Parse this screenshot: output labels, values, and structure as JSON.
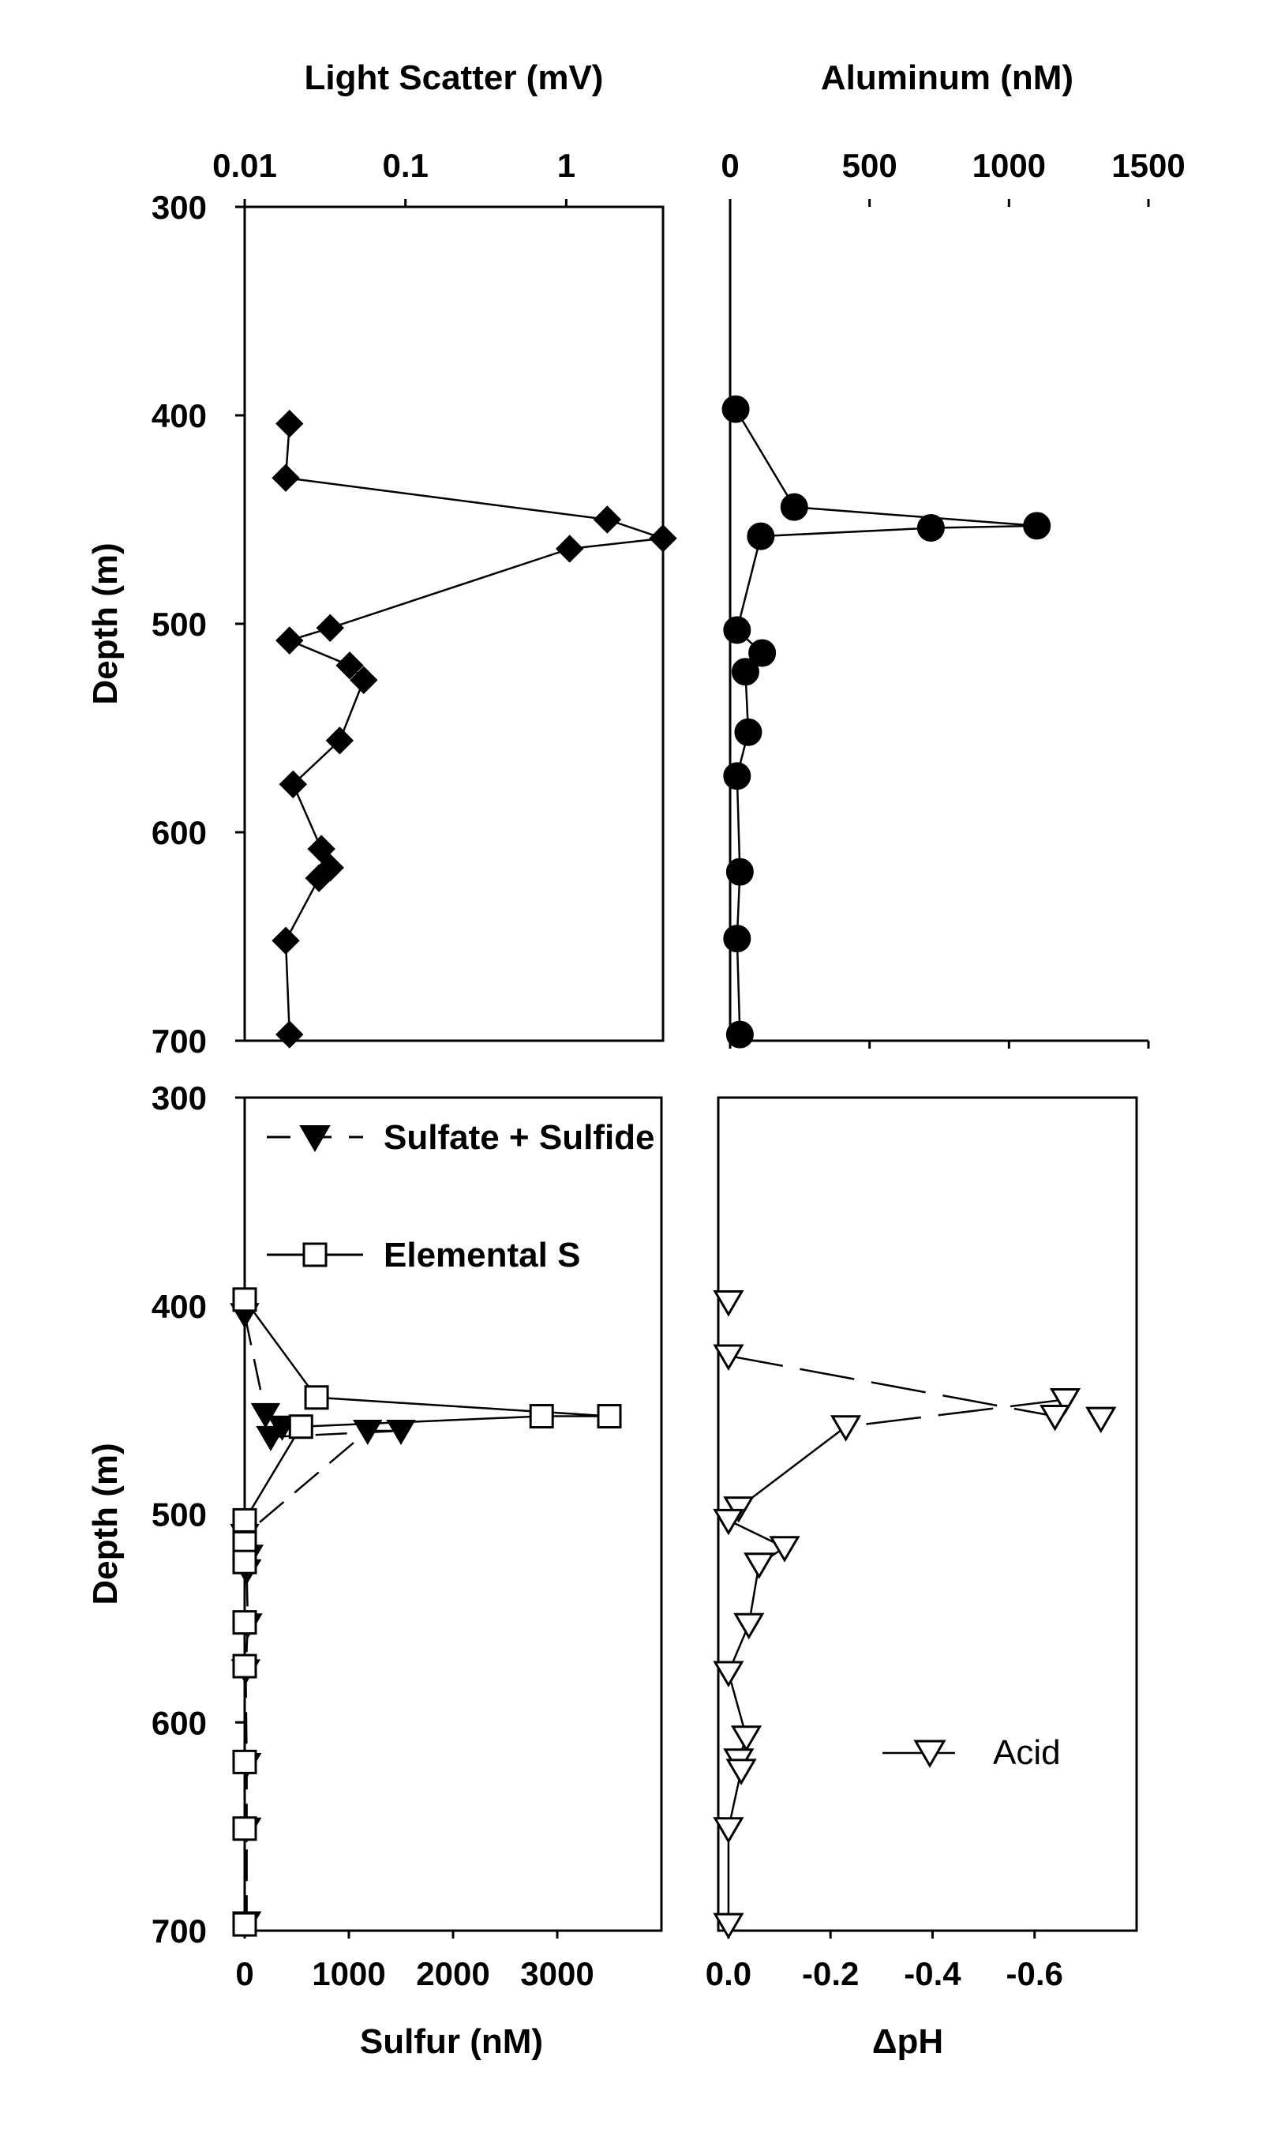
{
  "chart_data": [
    {
      "type": "line",
      "id": "light-scatter",
      "xlabel": "Light Scatter (mV)",
      "ylabel": "Depth (m)",
      "x_scale": "log",
      "xlim": [
        0.01,
        4.0
      ],
      "ylim": [
        300,
        700
      ],
      "x_ticks": [
        0.01,
        0.1,
        1
      ],
      "x_tick_labels": [
        "0.01",
        "0.1",
        "1"
      ],
      "y_ticks": [
        300,
        400,
        500,
        600,
        700
      ],
      "y_tick_labels": [
        "300",
        "400",
        "500",
        "600",
        "700"
      ],
      "series": [
        {
          "marker": "diamond-filled",
          "line": "solid",
          "points": [
            [
              0.019,
              404
            ],
            [
              0.018,
              430
            ],
            [
              1.8,
              450
            ],
            [
              4.0,
              459
            ],
            [
              1.05,
              464
            ],
            [
              0.034,
              502
            ],
            [
              0.019,
              508
            ],
            [
              0.045,
              520
            ],
            [
              0.055,
              527
            ],
            [
              0.039,
              556
            ],
            [
              0.02,
              577
            ],
            [
              0.03,
              608
            ],
            [
              0.034,
              617
            ],
            [
              0.029,
              622
            ],
            [
              0.018,
              652
            ],
            [
              0.019,
              697
            ]
          ]
        }
      ]
    },
    {
      "type": "line",
      "id": "aluminum",
      "xlabel": "Aluminum (nM)",
      "xlim": [
        0,
        1500
      ],
      "ylim": [
        300,
        700
      ],
      "x_ticks": [
        0,
        500,
        1000,
        1500
      ],
      "x_tick_labels": [
        "0",
        "500",
        "1000",
        "1500"
      ],
      "series": [
        {
          "marker": "circle-filled",
          "line": "solid",
          "points": [
            [
              20,
              397
            ],
            [
              230,
              444
            ],
            [
              1100,
              453
            ],
            [
              720,
              454
            ],
            [
              110,
              458
            ],
            [
              25,
              503
            ],
            [
              115,
              514
            ],
            [
              55,
              523
            ],
            [
              65,
              552
            ],
            [
              25,
              573
            ],
            [
              35,
              619
            ],
            [
              25,
              651
            ],
            [
              35,
              697
            ]
          ]
        }
      ]
    },
    {
      "type": "line",
      "id": "sulfur",
      "xlabel": "Sulfur (nM)",
      "ylabel": "Depth (m)",
      "xlim": [
        0,
        4000
      ],
      "ylim": [
        300,
        700
      ],
      "x_ticks": [
        0,
        1000,
        2000,
        3000
      ],
      "x_tick_labels": [
        "0",
        "1000",
        "2000",
        "3000"
      ],
      "y_ticks": [
        300,
        400,
        500,
        600,
        700
      ],
      "y_tick_labels": [
        "300",
        "400",
        "500",
        "600",
        "700"
      ],
      "legend_position": "top-left",
      "series": [
        {
          "name": "Sulfate + Sulfide",
          "marker": "triangle-down-filled",
          "line": "dash",
          "points": [
            [
              0,
              404
            ],
            [
              200,
              452
            ],
            [
              360,
              458
            ],
            [
              250,
              463
            ],
            [
              1500,
              460
            ],
            [
              1180,
              460
            ],
            [
              0,
              510
            ],
            [
              40,
              520
            ],
            [
              20,
              527
            ],
            [
              30,
              553
            ],
            [
              10,
              575
            ],
            [
              20,
              620
            ],
            [
              20,
              651
            ],
            [
              20,
              696
            ]
          ]
        },
        {
          "name": "Elemental S",
          "marker": "square-open",
          "line": "solid",
          "points": [
            [
              0,
              397
            ],
            [
              690,
              444
            ],
            [
              3500,
              453
            ],
            [
              2850,
              453
            ],
            [
              540,
              458
            ],
            [
              0,
              503
            ],
            [
              0,
              514
            ],
            [
              0,
              523
            ],
            [
              0,
              552
            ],
            [
              0,
              573
            ],
            [
              0,
              619
            ],
            [
              0,
              651
            ],
            [
              0,
              697
            ]
          ]
        }
      ]
    },
    {
      "type": "line",
      "id": "delta-ph",
      "xlabel": "ΔpH",
      "xlim": [
        0.02,
        -0.8
      ],
      "ylim": [
        300,
        700
      ],
      "x_ticks": [
        0.0,
        -0.2,
        -0.4,
        -0.6
      ],
      "x_tick_labels": [
        "0.0",
        "-0.2",
        "-0.4",
        "-0.6"
      ],
      "legend_position": "lower-right",
      "series": [
        {
          "name": "Acid",
          "marker": "triangle-down-open",
          "points": [
            [
              0.0,
              398
            ],
            [
              0.0,
              424
            ],
            [
              -0.66,
              445
            ],
            [
              -0.64,
              453
            ],
            [
              -0.73,
              454
            ],
            [
              -0.23,
              458
            ],
            [
              -0.02,
              497
            ],
            [
              0.0,
              503
            ],
            [
              -0.11,
              516
            ],
            [
              -0.06,
              524
            ],
            [
              -0.04,
              553
            ],
            [
              0.0,
              576
            ],
            [
              -0.035,
              607
            ],
            [
              -0.02,
              618
            ],
            [
              -0.025,
              623
            ],
            [
              0.0,
              651
            ],
            [
              0.0,
              697
            ]
          ],
          "segments": [
            {
              "from": 1,
              "to": 3,
              "style": "long-dash"
            },
            {
              "from": 2,
              "to": 5,
              "style": "long-dash"
            },
            {
              "from": 5,
              "to": 6,
              "style": "solid"
            },
            {
              "from": 6,
              "to": 7,
              "style": "solid"
            },
            {
              "from": 7,
              "to": 8,
              "style": "solid"
            },
            {
              "from": 8,
              "to": 9,
              "style": "solid"
            },
            {
              "from": 9,
              "to": 10,
              "style": "solid"
            },
            {
              "from": 10,
              "to": 11,
              "style": "solid"
            },
            {
              "from": 11,
              "to": 12,
              "style": "solid"
            },
            {
              "from": 12,
              "to": 13,
              "style": "solid"
            },
            {
              "from": 13,
              "to": 14,
              "style": "solid"
            },
            {
              "from": 14,
              "to": 15,
              "style": "solid"
            },
            {
              "from": 15,
              "to": 16,
              "style": "solid"
            }
          ]
        }
      ]
    }
  ]
}
